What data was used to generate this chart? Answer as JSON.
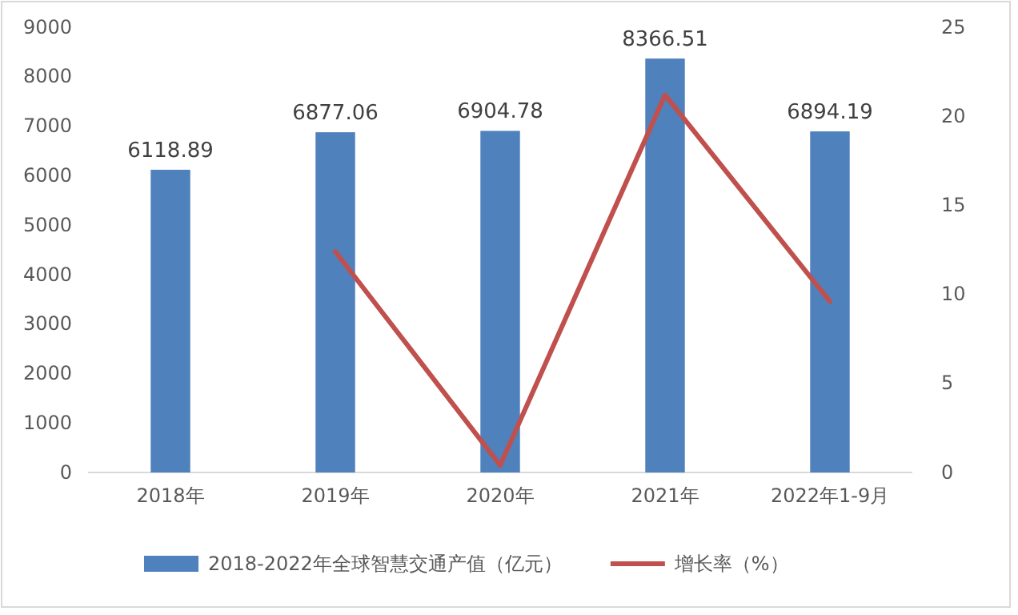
{
  "chart_data": {
    "type": "bar",
    "categories": [
      "2018年",
      "2019年",
      "2020年",
      "2021年",
      "2022年1-9月"
    ],
    "series": [
      {
        "name": "2018-2022年全球智慧交通产值（亿元）",
        "color": "#4f81bd",
        "values": [
          6118.89,
          6877.06,
          6904.78,
          8366.51,
          6894.19
        ],
        "value_labels": [
          "6118.89",
          "6877.06",
          "6904.78",
          "8366.51",
          "6894.19"
        ]
      },
      {
        "name": "增长率（%）",
        "type": "line",
        "axis": "y2",
        "color": "#c0504d",
        "values": [
          null,
          12.4,
          0.4,
          21.2,
          9.6
        ]
      }
    ],
    "ylim": [
      0,
      9000
    ],
    "yticks": [
      0,
      1000,
      2000,
      3000,
      4000,
      5000,
      6000,
      7000,
      8000,
      9000
    ],
    "y2lim": [
      0,
      25
    ],
    "y2ticks": [
      0,
      5,
      10,
      15,
      20,
      25
    ],
    "grid": false,
    "legend": "bottom",
    "marker": "none",
    "line_style": "solid"
  }
}
